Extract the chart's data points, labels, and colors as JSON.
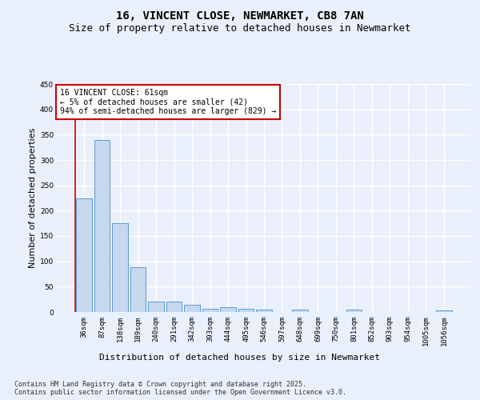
{
  "title_line1": "16, VINCENT CLOSE, NEWMARKET, CB8 7AN",
  "title_line2": "Size of property relative to detached houses in Newmarket",
  "xlabel": "Distribution of detached houses by size in Newmarket",
  "ylabel": "Number of detached properties",
  "categories": [
    "36sqm",
    "87sqm",
    "138sqm",
    "189sqm",
    "240sqm",
    "291sqm",
    "342sqm",
    "393sqm",
    "444sqm",
    "495sqm",
    "546sqm",
    "597sqm",
    "648sqm",
    "699sqm",
    "750sqm",
    "801sqm",
    "852sqm",
    "903sqm",
    "954sqm",
    "1005sqm",
    "1056sqm"
  ],
  "values": [
    224,
    340,
    175,
    88,
    20,
    20,
    14,
    7,
    9,
    7,
    5,
    0,
    5,
    0,
    0,
    5,
    0,
    0,
    0,
    0,
    3
  ],
  "bar_color": "#c5d8f0",
  "bar_edge_color": "#5b9bd5",
  "annotation_box_color": "#ffffff",
  "annotation_border_color": "#cc0000",
  "annotation_text_line1": "16 VINCENT CLOSE: 61sqm",
  "annotation_text_line2": "← 5% of detached houses are smaller (42)",
  "annotation_text_line3": "94% of semi-detached houses are larger (829) →",
  "marker_line_color": "#cc0000",
  "ylim": [
    0,
    450
  ],
  "yticks": [
    0,
    50,
    100,
    150,
    200,
    250,
    300,
    350,
    400,
    450
  ],
  "footer_line1": "Contains HM Land Registry data © Crown copyright and database right 2025.",
  "footer_line2": "Contains public sector information licensed under the Open Government Licence v3.0.",
  "bg_color": "#eaf0fb",
  "plot_bg_color": "#eaf0fb",
  "grid_color": "#ffffff",
  "title_fontsize": 10,
  "subtitle_fontsize": 9,
  "axis_label_fontsize": 8,
  "tick_fontsize": 6.5,
  "annotation_fontsize": 7,
  "footer_fontsize": 6
}
